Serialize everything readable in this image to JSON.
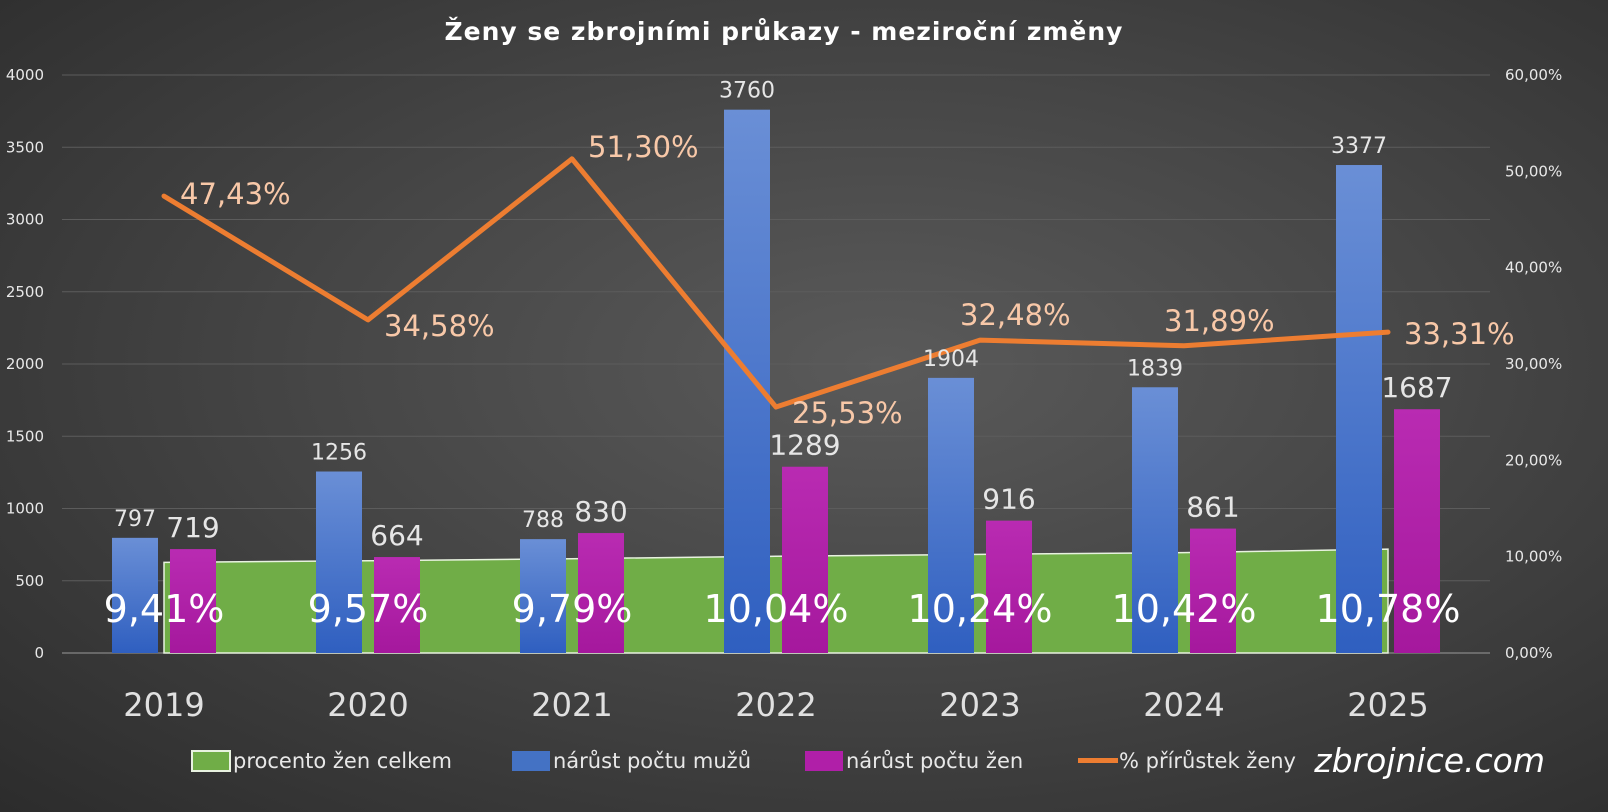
{
  "chart_data": {
    "type": "bar",
    "title": "Ženy se zbrojními průkazy - meziroční změny",
    "categories": [
      "2019",
      "2020",
      "2021",
      "2022",
      "2023",
      "2024",
      "2025"
    ],
    "y_left": {
      "range": [
        0,
        4000
      ],
      "ticks": [
        "0",
        "500",
        "1000",
        "1500",
        "2000",
        "2500",
        "3000",
        "3500",
        "4000"
      ]
    },
    "y_right": {
      "range": [
        0,
        60
      ],
      "ticks": [
        "0,00%",
        "10,00%",
        "20,00%",
        "30,00%",
        "40,00%",
        "50,00%",
        "60,00%"
      ]
    },
    "grid": true,
    "legend_position": "bottom",
    "series": [
      {
        "name": "procento žen celkem",
        "type": "area",
        "axis": "right",
        "color": "#70ad47",
        "values": [
          9.41,
          9.57,
          9.79,
          10.04,
          10.24,
          10.42,
          10.78
        ],
        "labels": [
          "9,41%",
          "9,57%",
          "9,79%",
          "10,04%",
          "10,24%",
          "10,42%",
          "10,78%"
        ]
      },
      {
        "name": "nárůst počtu mužů",
        "type": "bar",
        "axis": "left",
        "color": "#4472c4",
        "values": [
          797,
          1256,
          788,
          3760,
          1904,
          1839,
          3377
        ],
        "labels": [
          "797",
          "1256",
          "788",
          "3760",
          "1904",
          "1839",
          "3377"
        ]
      },
      {
        "name": "nárůst počtu žen",
        "type": "bar",
        "axis": "left",
        "color": "#b01fa8",
        "values": [
          719,
          664,
          830,
          1289,
          916,
          861,
          1687
        ],
        "labels": [
          "719",
          "664",
          "830",
          "1289",
          "916",
          "861",
          "1687"
        ]
      },
      {
        "name": "% přírůstek ženy",
        "type": "line",
        "axis": "right",
        "color": "#ed7d31",
        "values": [
          47.43,
          34.58,
          51.3,
          25.53,
          32.48,
          31.89,
          33.31
        ],
        "labels": [
          "47,43%",
          "34,58%",
          "51,30%",
          "25,53%",
          "32,48%",
          "31,89%",
          "33,31%"
        ]
      }
    ]
  },
  "watermark": "zbrojnice.com"
}
